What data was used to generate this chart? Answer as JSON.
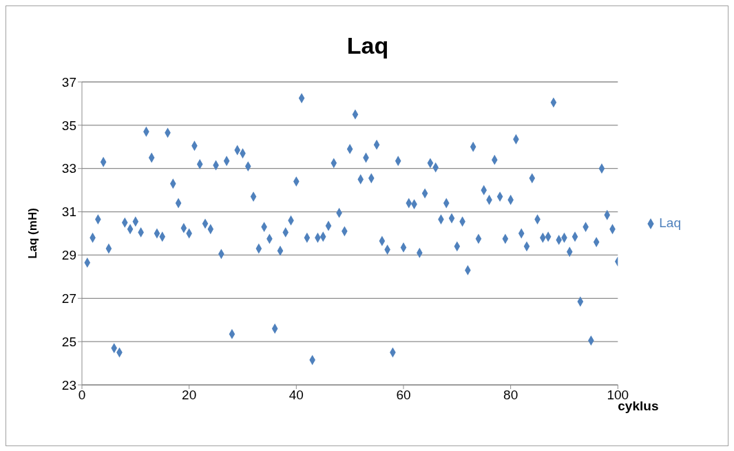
{
  "chart_data": {
    "type": "scatter",
    "title": "Laq",
    "xlabel": "cyklus",
    "ylabel": "Laq (mH)",
    "x": [
      1,
      2,
      3,
      4,
      5,
      6,
      7,
      8,
      9,
      10,
      11,
      12,
      13,
      14,
      15,
      16,
      17,
      18,
      19,
      20,
      21,
      22,
      23,
      24,
      25,
      26,
      27,
      28,
      29,
      30,
      31,
      32,
      33,
      34,
      35,
      36,
      37,
      38,
      39,
      40,
      41,
      42,
      43,
      44,
      45,
      46,
      47,
      48,
      49,
      50,
      51,
      52,
      53,
      54,
      55,
      56,
      57,
      58,
      59,
      60,
      61,
      62,
      63,
      64,
      65,
      66,
      67,
      68,
      69,
      70,
      71,
      72,
      73,
      74,
      75,
      76,
      77,
      78,
      79,
      80,
      81,
      82,
      83,
      84,
      85,
      86,
      87,
      88,
      89,
      90,
      91,
      92,
      93,
      94,
      95,
      96,
      97,
      98,
      99,
      100
    ],
    "series": [
      {
        "name": "Laq",
        "color": "#4f81bd",
        "values": [
          28.65,
          29.8,
          30.65,
          33.3,
          29.3,
          24.7,
          24.5,
          30.5,
          30.2,
          30.55,
          30.05,
          34.7,
          33.5,
          30.0,
          29.85,
          34.65,
          32.3,
          31.4,
          30.25,
          30.0,
          34.05,
          33.2,
          30.45,
          30.2,
          33.15,
          29.05,
          33.35,
          25.35,
          33.85,
          33.7,
          33.1,
          31.7,
          29.3,
          30.3,
          29.75,
          25.6,
          29.2,
          30.05,
          30.6,
          32.4,
          36.25,
          29.8,
          24.15,
          29.8,
          29.85,
          30.35,
          33.25,
          30.95,
          30.1,
          33.9,
          35.5,
          32.5,
          33.5,
          32.55,
          34.1,
          29.65,
          29.25,
          24.5,
          33.35,
          29.35,
          31.4,
          31.35,
          29.1,
          31.85,
          33.25,
          33.05,
          30.65,
          31.4,
          30.7,
          29.4,
          30.55,
          28.3,
          34.0,
          29.75,
          32.0,
          31.55,
          33.4,
          31.7,
          29.75,
          31.55,
          34.35,
          30.0,
          29.4,
          32.55,
          30.65,
          29.8,
          29.85,
          36.05,
          29.7,
          29.8,
          29.15,
          29.85,
          26.85,
          30.3,
          25.05,
          29.6,
          33.0,
          30.85,
          30.2,
          28.7
        ]
      }
    ],
    "xlim": [
      0,
      100
    ],
    "xticks": [
      0,
      20,
      40,
      60,
      80,
      100
    ],
    "ylim": [
      23,
      37
    ],
    "yticks": [
      23,
      25,
      27,
      29,
      31,
      33,
      35,
      37
    ],
    "grid": "y",
    "legend": "right",
    "marker": "diamond"
  }
}
